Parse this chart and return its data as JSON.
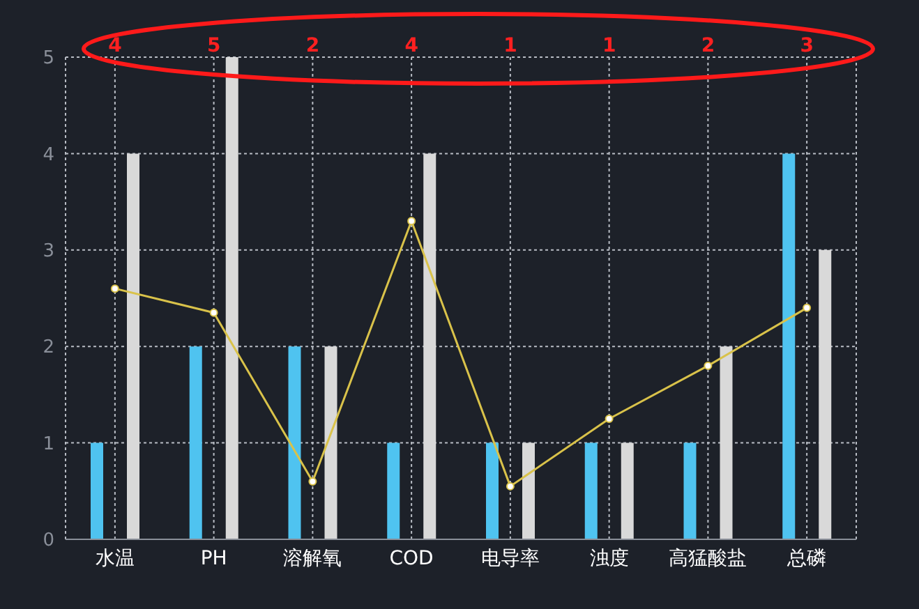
{
  "chart_data": {
    "type": "bar",
    "categories": [
      "水温",
      "PH",
      "溶解氧",
      "COD",
      "电导率",
      "浊度",
      "高猛酸盐",
      "总磷"
    ],
    "series": [
      {
        "color": "#4fc3f0",
        "values": [
          1,
          2,
          2,
          1,
          1,
          1,
          1,
          4
        ]
      },
      {
        "color": "#d9d9d9",
        "values": [
          4,
          5,
          2,
          4,
          1,
          1,
          2,
          3
        ]
      },
      {
        "type": "line",
        "color": "#d9c24a",
        "values": [
          2.6,
          2.35,
          0.6,
          3.3,
          0.55,
          1.25,
          1.8,
          2.4
        ]
      }
    ],
    "annotations": [
      "4",
      "5",
      "2",
      "4",
      "1",
      "1",
      "2",
      "3"
    ],
    "ylim": [
      0,
      5
    ],
    "yticks": [
      0,
      1,
      2,
      3,
      4,
      5
    ],
    "grid": true,
    "marker": "circle",
    "line_style": "solid"
  }
}
